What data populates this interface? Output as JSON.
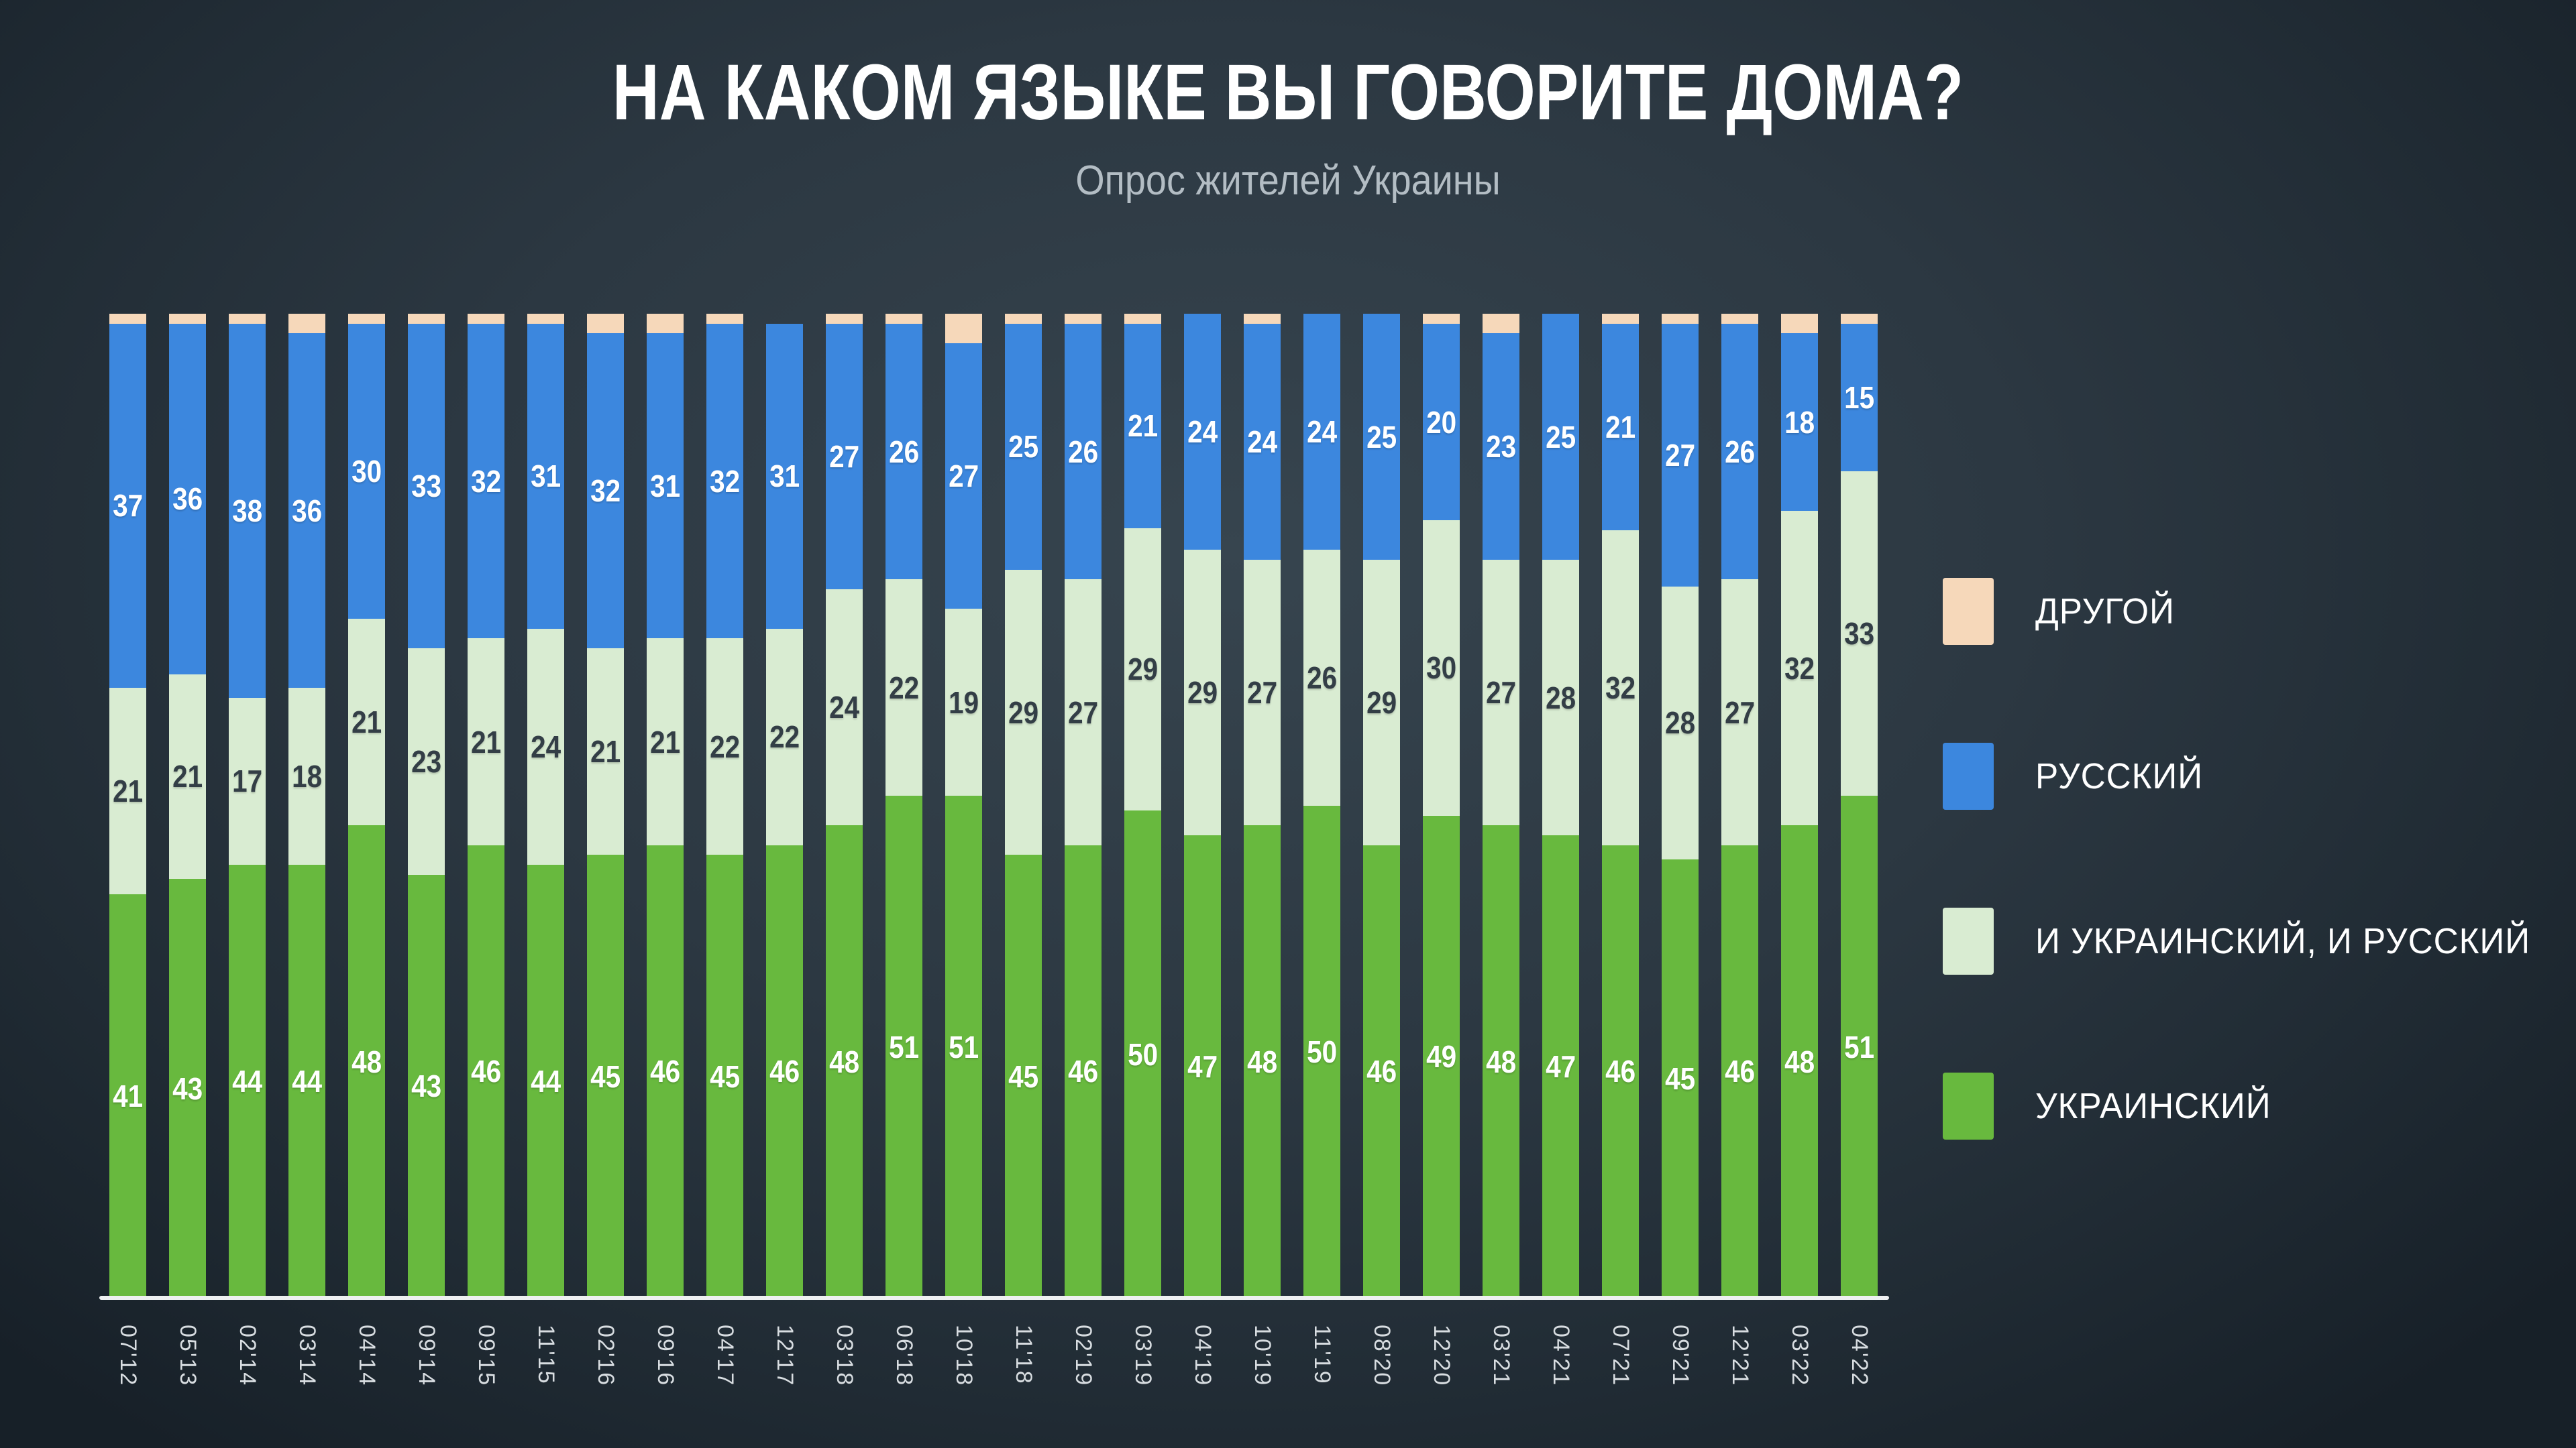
{
  "header": {
    "title": "НА КАКОМ ЯЗЫКЕ ВЫ ГОВОРИТЕ ДОМА?",
    "subtitle": "Опрос жителей Украины"
  },
  "legend": {
    "position": "right",
    "items": [
      {
        "key": "other",
        "label": "ДРУГОЙ",
        "color": "#f6d8ba"
      },
      {
        "key": "russian",
        "label": "РУССКИЙ",
        "color": "#3c87de"
      },
      {
        "key": "both",
        "label": "И УКРАИНСКИЙ, И РУССКИЙ",
        "color": "#d9ecd2"
      },
      {
        "key": "ukrainian",
        "label": "УКРАИНСКИЙ",
        "color": "#68b93e"
      }
    ]
  },
  "chart_data": {
    "type": "bar",
    "variant": "stacked-percent",
    "unit": "percent",
    "ylim": [
      0,
      100
    ],
    "grid": false,
    "legend_position": "right",
    "axis_line_color": "#eef0f1",
    "categories": [
      "07'12",
      "05'13",
      "02'14",
      "03'14",
      "04'14",
      "09'14",
      "09'15",
      "11'15",
      "02'16",
      "09'16",
      "04'17",
      "12'17",
      "03'18",
      "06'18",
      "10'18",
      "11'18",
      "02'19",
      "03'19",
      "04'19",
      "10'19",
      "11'19",
      "08'20",
      "12'20",
      "03'21",
      "04'21",
      "07'21",
      "09'21",
      "12'21",
      "03'22",
      "04'22"
    ],
    "series": [
      {
        "name": "УКРАИНСКИЙ",
        "key": "ukrainian",
        "color": "#68b93e",
        "label_color": "#ffffff",
        "show_labels": true,
        "values": [
          41,
          43,
          44,
          44,
          48,
          43,
          46,
          44,
          45,
          46,
          45,
          46,
          48,
          51,
          51,
          45,
          46,
          50,
          47,
          48,
          50,
          46,
          49,
          48,
          47,
          46,
          45,
          46,
          48,
          51
        ]
      },
      {
        "name": "И УКРАИНСКИЙ, И РУССКИЙ",
        "key": "both",
        "color": "#d9ecd2",
        "label_color": "#333e46",
        "show_labels": true,
        "values": [
          21,
          21,
          17,
          18,
          21,
          23,
          21,
          24,
          21,
          21,
          22,
          22,
          24,
          22,
          19,
          29,
          27,
          29,
          29,
          27,
          26,
          29,
          30,
          27,
          28,
          32,
          28,
          27,
          32,
          33
        ]
      },
      {
        "name": "РУССКИЙ",
        "key": "russian",
        "color": "#3c87de",
        "label_color": "#ffffff",
        "show_labels": true,
        "values": [
          37,
          36,
          38,
          36,
          30,
          33,
          32,
          31,
          32,
          31,
          32,
          31,
          27,
          26,
          27,
          25,
          26,
          21,
          24,
          24,
          24,
          25,
          20,
          23,
          25,
          21,
          27,
          26,
          18,
          15
        ]
      },
      {
        "name": "ДРУГОЙ",
        "key": "other",
        "color": "#f6d8ba",
        "label_color": "#333e46",
        "show_labels": false,
        "values": [
          1,
          1,
          1,
          2,
          1,
          1,
          1,
          1,
          2,
          2,
          1,
          0,
          1,
          1,
          3,
          1,
          1,
          1,
          0,
          1,
          0,
          0,
          1,
          2,
          0,
          1,
          1,
          1,
          2,
          1
        ]
      }
    ]
  }
}
